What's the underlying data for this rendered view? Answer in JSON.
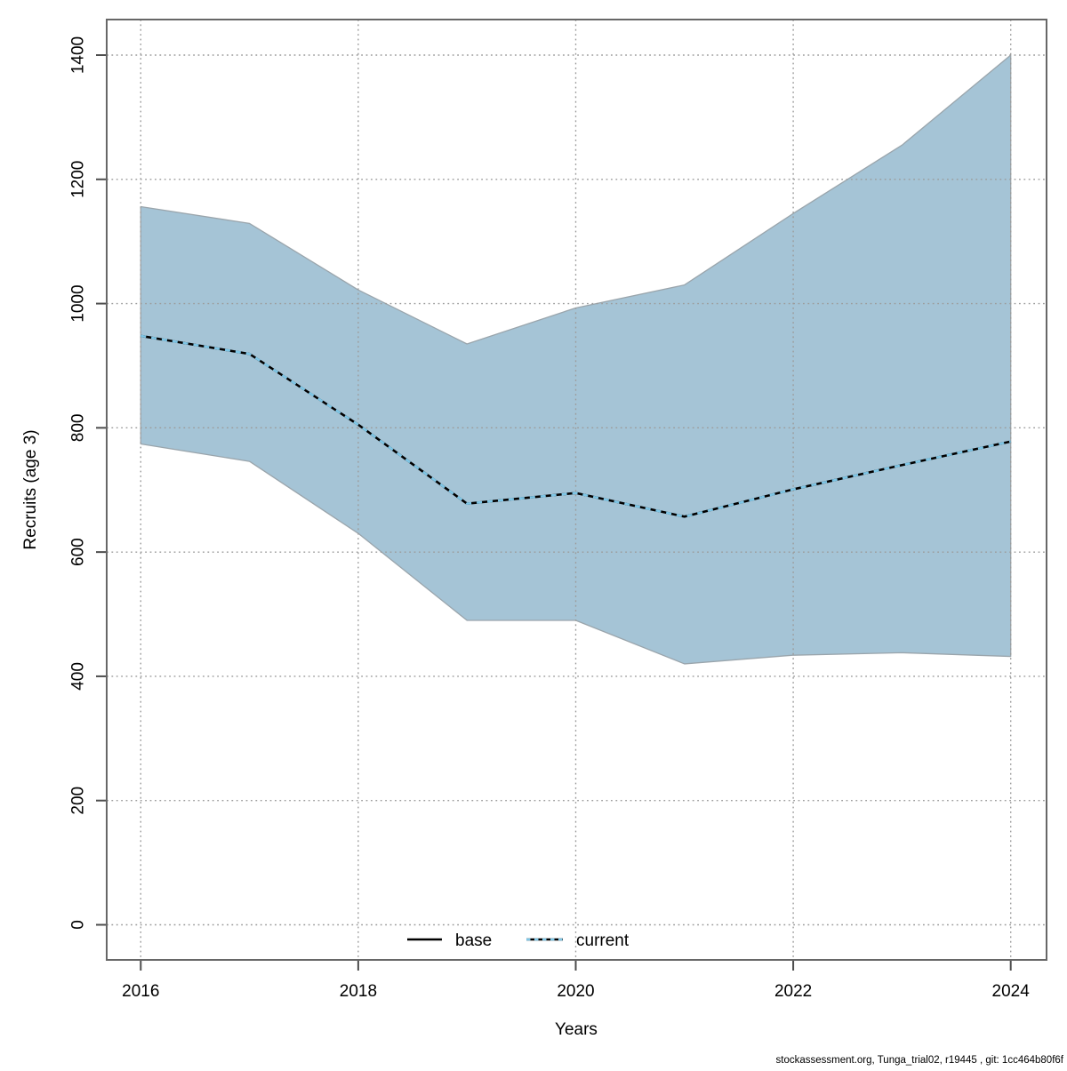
{
  "page": {
    "background": "#ffffff"
  },
  "axes": {
    "y_label": "Recruits (age 3)",
    "x_label": "Years"
  },
  "legend": {
    "base_label": "base",
    "current_label": "current"
  },
  "footer": {
    "text": "stockassessment.org, Tunga_trial02, r19445 , git: 1cc464b80f6f"
  },
  "colors": {
    "band_fill": "#a5c4d6",
    "band_edge": "#9aa5ac",
    "base_line": "#000000",
    "current_line": "#7ec6e6",
    "grid": "#9c9c9c",
    "box": "#676767",
    "tick": "#4d4d4d",
    "text": "#000000"
  },
  "chart_data": {
    "type": "area",
    "title": "",
    "xlabel": "Years",
    "ylabel": "Recruits (age 3)",
    "x": [
      2016,
      2017,
      2018,
      2019,
      2020,
      2021,
      2022,
      2023,
      2024
    ],
    "series": [
      {
        "name": "base median",
        "style": "solid black line",
        "values": [
          948,
          919,
          805,
          678,
          695,
          657,
          701,
          740,
          778
        ]
      },
      {
        "name": "current median",
        "style": "dotted lightblue line overlapping base",
        "values": [
          948,
          919,
          805,
          678,
          695,
          657,
          701,
          740,
          778
        ]
      },
      {
        "name": "ci_upper",
        "style": "upper edge of shaded confidence band",
        "values": [
          1156,
          1129,
          1022,
          935,
          993,
          1030,
          1145,
          1255,
          1400
        ]
      },
      {
        "name": "ci_lower",
        "style": "lower edge of shaded confidence band",
        "values": [
          774,
          746,
          630,
          490,
          490,
          420,
          434,
          438,
          432
        ]
      }
    ],
    "x_ticks": [
      2016,
      2018,
      2020,
      2022,
      2024
    ],
    "y_ticks": [
      0,
      200,
      400,
      600,
      800,
      1000,
      1200,
      1400
    ],
    "xlim": [
      2015.69,
      2024.33
    ],
    "ylim": [
      -56,
      1457
    ],
    "grid": true,
    "grid_style": "dotted",
    "legend_position": "bottom-center"
  }
}
